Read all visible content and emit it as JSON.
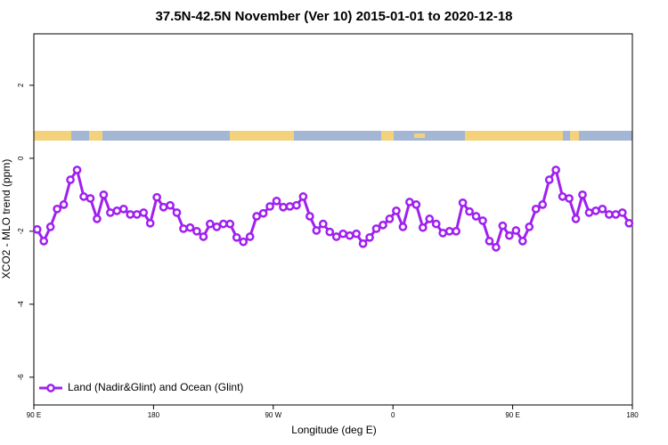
{
  "chart_data": {
    "type": "line",
    "title": "37.5N-42.5N November (Ver 10)   2015-01-01 to 2020-12-18",
    "xlabel": "Longitude (deg E)",
    "ylabel": "XCO2 - MLO trend (ppm)",
    "xlim": [
      90,
      540
    ],
    "xticks": [
      {
        "value": 90,
        "label": "90 E"
      },
      180,
      {
        "value": 270,
        "label": "90 W"
      },
      {
        "value": 360,
        "label": "0"
      },
      {
        "value": 450,
        "label": "90 E"
      },
      {
        "value": 540,
        "label": "180"
      }
    ],
    "ylim": [
      -6.76,
      3.41
    ],
    "yticks": [
      -6,
      -4,
      -2,
      0,
      2
    ],
    "legend": "bottom-left",
    "series": [
      {
        "name": "Land (Nadir&Glint) and Ocean (Glint)",
        "color": "#a020f0",
        "x": [
          92.5,
          97.5,
          102.5,
          107.5,
          112.5,
          117.5,
          122.5,
          127.5,
          132.5,
          137.5,
          142.5,
          147.5,
          152.5,
          157.5,
          162.5,
          167.5,
          172.5,
          177.5,
          182.5,
          187.5,
          192.5,
          197.5,
          202.5,
          207.5,
          212.5,
          217.5,
          222.5,
          227.5,
          232.5,
          237.5,
          242.5,
          247.5,
          252.5,
          257.5,
          262.5,
          267.5,
          272.5,
          277.5,
          282.5,
          287.5,
          292.5,
          297.5,
          302.5,
          307.5,
          312.5,
          317.5,
          322.5,
          327.5,
          332.5,
          337.5,
          342.5,
          347.5,
          352.5,
          357.5,
          362.5,
          367.5,
          372.5,
          377.5,
          382.5,
          387.5,
          392.5,
          397.5,
          402.5,
          407.5,
          412.5,
          417.5,
          422.5,
          427.5,
          432.5,
          437.5,
          442.5,
          447.5,
          452.5,
          457.5,
          462.5,
          467.5,
          472.5,
          477.5,
          482.5,
          487.5,
          492.5,
          497.5,
          502.5,
          507.5,
          512.5,
          517.5,
          522.5,
          527.5,
          532.5,
          537.5
        ],
        "values": [
          -1.95,
          -2.27,
          -1.88,
          -1.39,
          -1.27,
          -0.59,
          -0.32,
          -1.05,
          -1.1,
          -1.66,
          -1.0,
          -1.49,
          -1.44,
          -1.39,
          -1.54,
          -1.54,
          -1.49,
          -1.78,
          -1.07,
          -1.34,
          -1.29,
          -1.49,
          -1.93,
          -1.9,
          -2.0,
          -2.15,
          -1.8,
          -1.88,
          -1.8,
          -1.8,
          -2.17,
          -2.29,
          -2.15,
          -1.59,
          -1.51,
          -1.32,
          -1.17,
          -1.34,
          -1.32,
          -1.29,
          -1.05,
          -1.59,
          -1.98,
          -1.8,
          -2.02,
          -2.15,
          -2.07,
          -2.12,
          -2.07,
          -2.34,
          -2.17,
          -1.93,
          -1.83,
          -1.66,
          -1.44,
          -1.88,
          -1.2,
          -1.27,
          -1.9,
          -1.66,
          -1.8,
          -2.05,
          -2.0,
          -2.0,
          -1.22,
          -1.46,
          -1.59,
          -1.71,
          -2.27,
          -2.44,
          -1.85,
          -2.12,
          -1.98,
          -2.27,
          -1.88,
          -1.39,
          -1.27,
          -0.59,
          -0.32,
          -1.05,
          -1.1,
          -1.66,
          -1.0,
          -1.49,
          -1.44,
          -1.39,
          -1.54,
          -1.54,
          -1.49,
          -1.78
        ]
      }
    ]
  }
}
